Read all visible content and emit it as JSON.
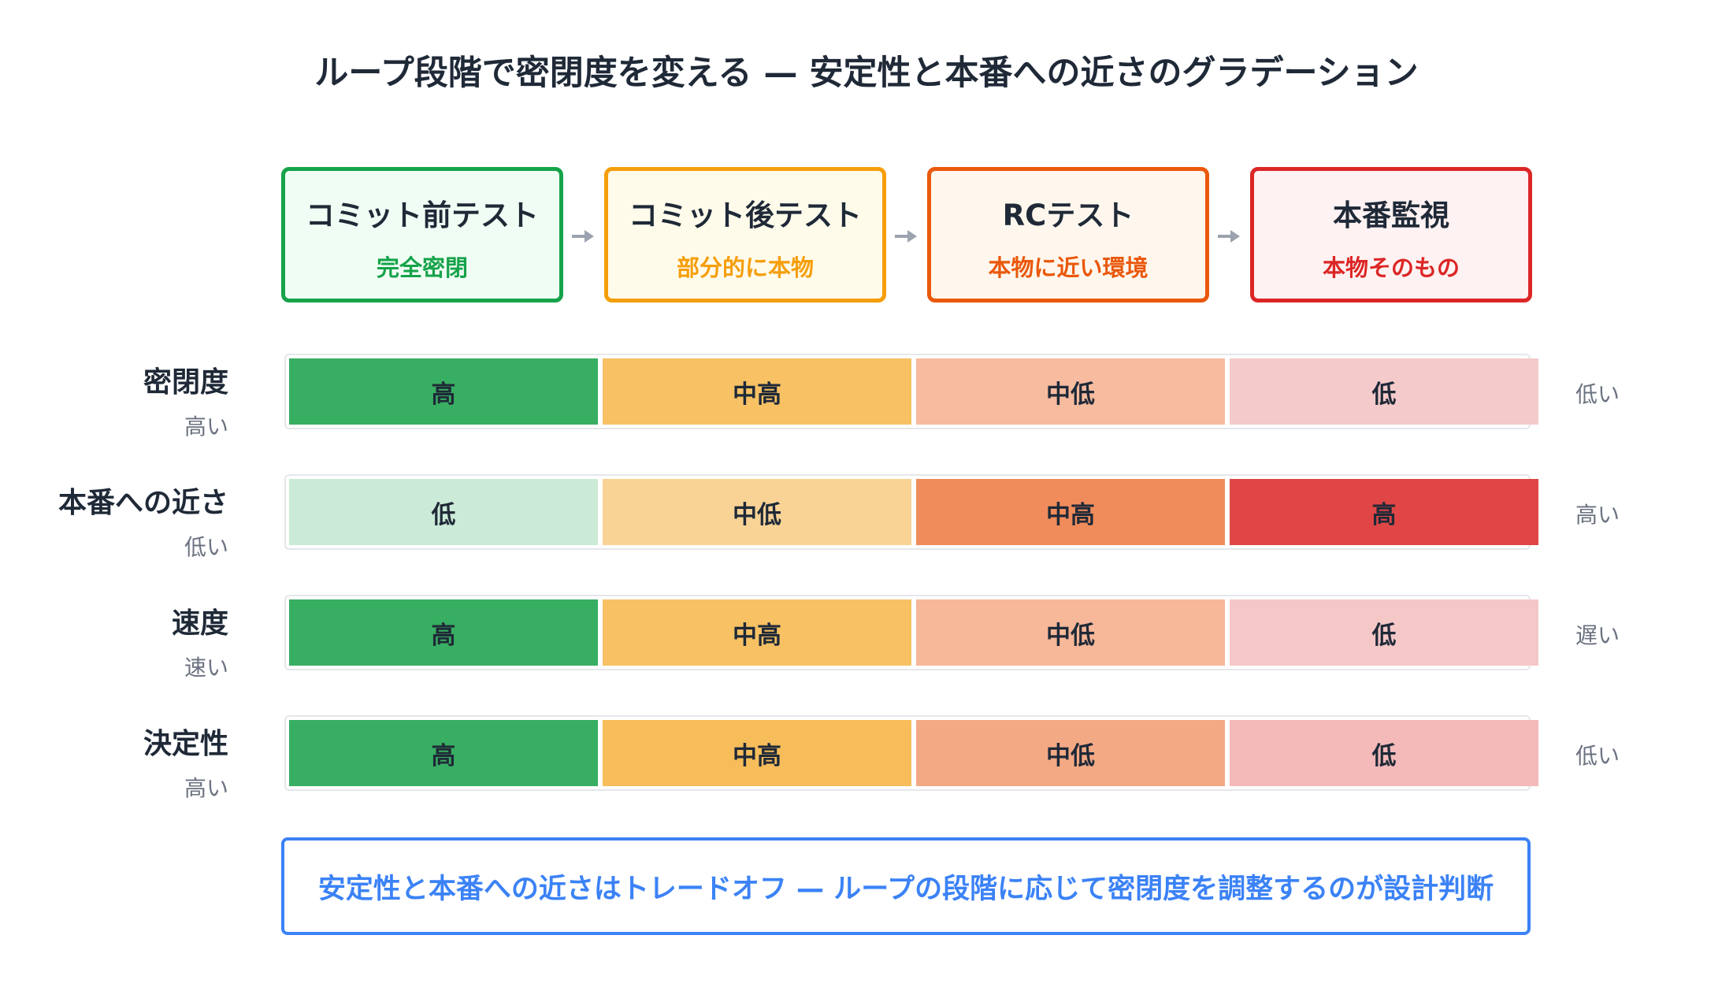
{
  "title": "ループ段階で密閉度を変える — 安定性と本番への近さのグラデーション",
  "stages": [
    {
      "name": "コミット前テスト",
      "sub": "完全密閉",
      "border": "#16a34a",
      "bg": "#f0fdf4",
      "sub_color": "#16a34a"
    },
    {
      "name": "コミット後テスト",
      "sub": "部分的に本物",
      "border": "#f59e0b",
      "bg": "#fffbeb",
      "sub_color": "#f59e0b"
    },
    {
      "name": "RCテスト",
      "sub": "本物に近い環境",
      "border": "#ea580c",
      "bg": "#fff7ed",
      "sub_color": "#ea580c"
    },
    {
      "name": "本番監視",
      "sub": "本物そのもの",
      "border": "#dc2626",
      "bg": "#fef2f2",
      "sub_color": "#dc2626"
    }
  ],
  "arrow_color": "#9ca3af",
  "rows": [
    {
      "label": "密閉度",
      "left_hint": "高い",
      "right_hint": "低い",
      "cells": [
        {
          "text": "高",
          "color": "#38ae62"
        },
        {
          "text": "中高",
          "color": "#f7c164"
        },
        {
          "text": "中低",
          "color": "#f7bb9f"
        },
        {
          "text": "低",
          "color": "#f5caca"
        }
      ]
    },
    {
      "label": "本番への近さ",
      "left_hint": "低い",
      "right_hint": "高い",
      "cells": [
        {
          "text": "低",
          "color": "#cbead7"
        },
        {
          "text": "中低",
          "color": "#f9d396"
        },
        {
          "text": "中高",
          "color": "#f08c5b"
        },
        {
          "text": "高",
          "color": "#e04646"
        }
      ]
    },
    {
      "label": "速度",
      "left_hint": "速い",
      "right_hint": "遅い",
      "cells": [
        {
          "text": "高",
          "color": "#38ae62"
        },
        {
          "text": "中高",
          "color": "#f7c164"
        },
        {
          "text": "中低",
          "color": "#f7b799"
        },
        {
          "text": "低",
          "color": "#f5c8c8"
        }
      ]
    },
    {
      "label": "決定性",
      "left_hint": "高い",
      "right_hint": "低い",
      "cells": [
        {
          "text": "高",
          "color": "#38ae62"
        },
        {
          "text": "中高",
          "color": "#f7bd5b"
        },
        {
          "text": "中低",
          "color": "#f3a984"
        },
        {
          "text": "低",
          "color": "#f4b9b9"
        }
      ]
    }
  ],
  "note": "安定性と本番への近さはトレードオフ — ループの段階に応じて密閉度を調整するのが設計判断"
}
